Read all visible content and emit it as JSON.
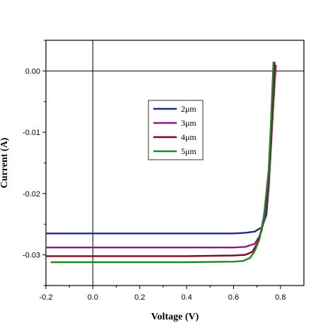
{
  "chart_data": {
    "type": "line",
    "xlabel": "Voltage (V)",
    "ylabel": "Current (A)",
    "xlim": [
      -0.2,
      0.9
    ],
    "ylim": [
      -0.035,
      0.005
    ],
    "x_ticks": [
      -0.2,
      0.0,
      0.2,
      0.4,
      0.6,
      0.8
    ],
    "x_tick_labels": [
      "-0.2",
      "0.0",
      "0.2",
      "0.4",
      "0.6",
      "0.8"
    ],
    "y_ticks": [
      0.0,
      -0.01,
      -0.02,
      -0.03
    ],
    "y_tick_labels": [
      "0.00",
      "-0.01",
      "-0.02",
      "-0.03"
    ],
    "grid": false,
    "zero_lines": true,
    "legend_position": "center",
    "series": [
      {
        "name": "2μm",
        "color": "#1f2a8c",
        "x": [
          -0.2,
          0.0,
          0.2,
          0.4,
          0.6,
          0.65,
          0.69,
          0.72,
          0.74,
          0.75,
          0.76,
          0.77,
          0.78
        ],
        "y": [
          -0.0265,
          -0.0265,
          -0.0265,
          -0.0265,
          -0.0265,
          -0.0264,
          -0.0262,
          -0.0255,
          -0.0235,
          -0.019,
          -0.012,
          -0.005,
          0.001
        ]
      },
      {
        "name": "3μm",
        "color": "#8b1a8b",
        "x": [
          -0.2,
          0.0,
          0.2,
          0.4,
          0.6,
          0.65,
          0.69,
          0.71,
          0.73,
          0.75,
          0.76,
          0.77,
          0.78
        ],
        "y": [
          -0.0288,
          -0.0288,
          -0.0288,
          -0.0288,
          -0.0288,
          -0.0287,
          -0.0282,
          -0.027,
          -0.0245,
          -0.019,
          -0.012,
          -0.005,
          0.001
        ]
      },
      {
        "name": "4μm",
        "color": "#7a0a1c",
        "x": [
          -0.2,
          0.0,
          0.2,
          0.4,
          0.6,
          0.65,
          0.68,
          0.7,
          0.72,
          0.74,
          0.755,
          0.765,
          0.775
        ],
        "y": [
          -0.0302,
          -0.0302,
          -0.0302,
          -0.0302,
          -0.0301,
          -0.03,
          -0.0295,
          -0.0282,
          -0.026,
          -0.021,
          -0.014,
          -0.006,
          0.0015
        ]
      },
      {
        "name": "5μm",
        "color": "#1f8a1f",
        "x": [
          -0.18,
          0.0,
          0.2,
          0.4,
          0.6,
          0.64,
          0.67,
          0.69,
          0.71,
          0.73,
          0.75,
          0.76,
          0.77
        ],
        "y": [
          -0.0312,
          -0.0312,
          -0.0312,
          -0.0312,
          -0.0311,
          -0.031,
          -0.0305,
          -0.0294,
          -0.0275,
          -0.0235,
          -0.016,
          -0.008,
          0.0015
        ]
      }
    ]
  }
}
